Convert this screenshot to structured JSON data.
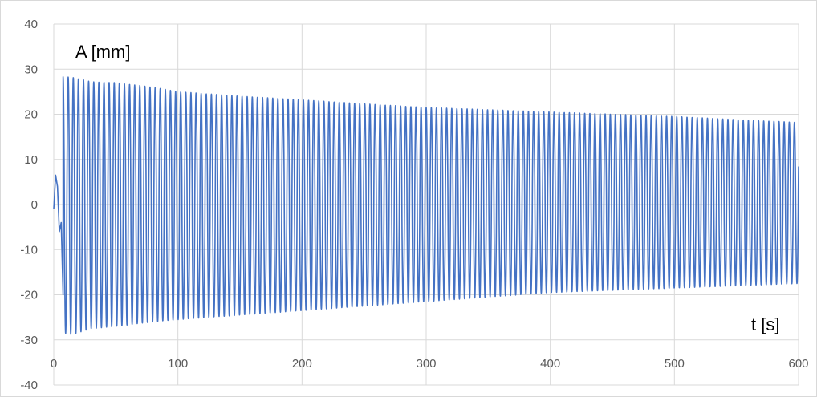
{
  "chart_data": {
    "type": "line",
    "xlabel": "t [s]",
    "ylabel": "A [mm]",
    "xlim": [
      0,
      600
    ],
    "ylim": [
      -40,
      40
    ],
    "x_ticks": [
      0,
      100,
      200,
      300,
      400,
      500,
      600
    ],
    "y_ticks": [
      40,
      30,
      20,
      10,
      0,
      -10,
      -20,
      -30,
      -40
    ],
    "grid": true,
    "legend": "none",
    "colors": {
      "series": "#4472C4",
      "grid": "#D9D9D9",
      "tick_text": "#595959"
    },
    "series": [
      {
        "period_s": 4.12,
        "start_s": 0,
        "end_s": 600,
        "transient": [
          [
            0,
            -1
          ],
          [
            1.5,
            6.5
          ],
          [
            3,
            4
          ],
          [
            4.5,
            -6
          ],
          [
            6,
            -4
          ],
          [
            7.5,
            -20
          ]
        ],
        "envelope_t": [
          8,
          15,
          30,
          50,
          80,
          100,
          150,
          200,
          250,
          300,
          350,
          400,
          450,
          500,
          550,
          600
        ],
        "envelope_upper": [
          28.3,
          28.2,
          27.2,
          27.0,
          26.0,
          25.0,
          24.0,
          23.2,
          22.3,
          21.5,
          21.0,
          20.5,
          20.0,
          19.5,
          18.8,
          18.2
        ],
        "envelope_lower": [
          -28.5,
          -28.8,
          -27.5,
          -27.0,
          -26.0,
          -25.5,
          -24.5,
          -23.5,
          -22.5,
          -21.5,
          -20.5,
          -19.5,
          -19.0,
          -18.5,
          -18.0,
          -17.5
        ]
      }
    ]
  }
}
